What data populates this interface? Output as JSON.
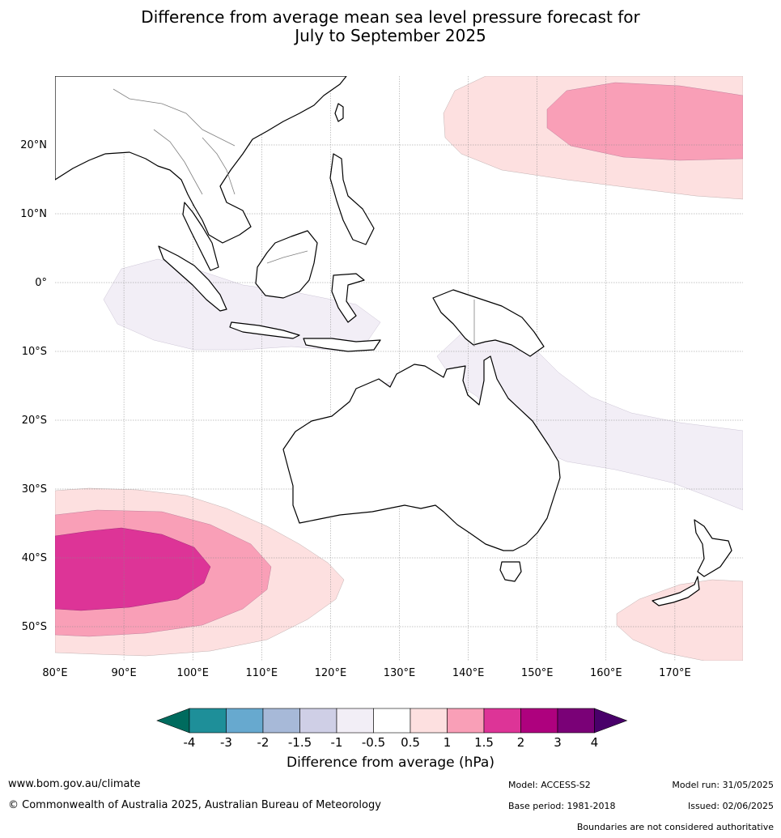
{
  "title_line1": "Difference from average mean sea level pressure forecast for",
  "title_line2": "July to September 2025",
  "map": {
    "lon_labels": [
      "80°E",
      "90°E",
      "100°E",
      "110°E",
      "120°E",
      "130°E",
      "140°E",
      "150°E",
      "160°E",
      "170°E"
    ],
    "lat_labels": [
      "20°N",
      "10°N",
      "0°",
      "10°S",
      "20°S",
      "30°S",
      "40°S",
      "50°S"
    ],
    "coastline_color": "#000000",
    "border_color": "#808080"
  },
  "colorbar": {
    "label": "Difference from average (hPa)",
    "tick_labels": [
      "-4",
      "-3",
      "-2",
      "-1.5",
      "-1",
      "-0.5",
      "0.5",
      "1",
      "1.5",
      "2",
      "3",
      "4"
    ],
    "colors": [
      "#006b5e",
      "#1e8f99",
      "#67a9cf",
      "#a7b9d8",
      "#cfcfe6",
      "#f2eef6",
      "#ffffff",
      "#fde0e0",
      "#f99fb7",
      "#dd3497",
      "#ae017e",
      "#7a0177",
      "#49006a"
    ]
  },
  "footer": {
    "website": "www.bom.gov.au/climate",
    "copyright": "© Commonwealth of Australia 2025, Australian Bureau of Meteorology",
    "model": "Model: ACCESS-S2",
    "base_period": "Base period: 1981-2018",
    "model_run": "Model run: 31/05/2025",
    "issued": "Issued: 02/06/2025",
    "disclaimer": "Boundaries are not considered authoritative"
  }
}
